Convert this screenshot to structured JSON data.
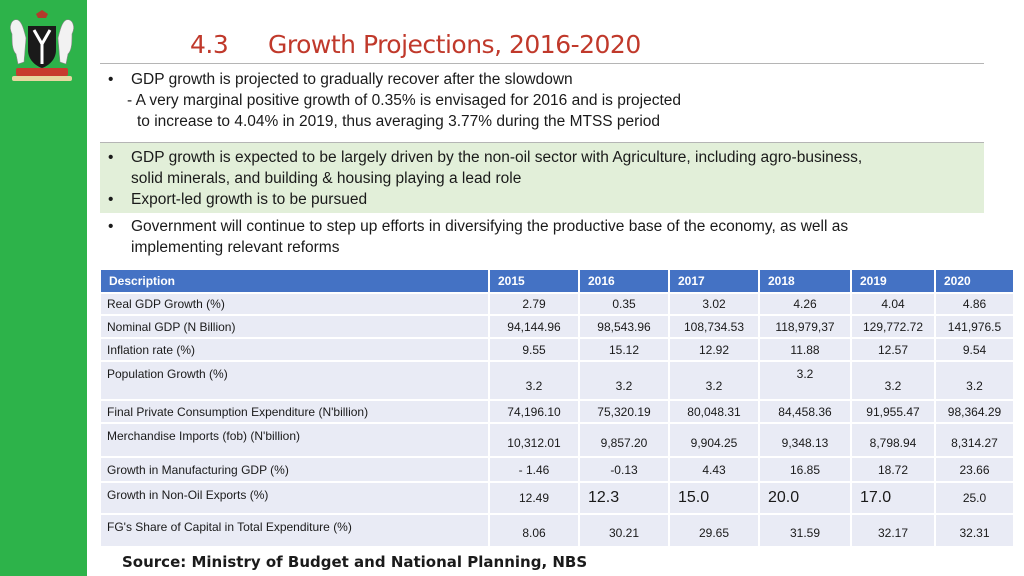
{
  "slide": {
    "title_number": "4.3",
    "title_text": "Growth Projections, 2016-2020",
    "bullets_block1": {
      "main": "GDP growth is projected to gradually recover after the slowdown",
      "sub1": "- A very marginal positive growth of 0.35% is envisaged for 2016 and is projected",
      "sub2": "to increase to 4.04% in 2019, thus averaging 3.77% during the MTSS period"
    },
    "bullets_block2": {
      "line1": "GDP growth is expected to be largely driven by the non-oil sector with Agriculture, including agro-business,",
      "line2": "solid minerals, and building & housing playing a lead role",
      "line3": "Export-led growth is to be pursued"
    },
    "bullets_block3": {
      "line1": "Government will continue to step up efforts in diversifying the productive base of the economy, as well as",
      "line2": "implementing relevant reforms"
    },
    "source": "Source: Ministry of Budget and National Planning, NBS"
  },
  "table": {
    "headers": [
      "Description",
      "2015",
      "2016",
      "2017",
      "2018",
      "2019",
      "2020"
    ],
    "rows": [
      [
        "Real GDP Growth (%)",
        "2.79",
        "0.35",
        "3.02",
        "4.26",
        "4.04",
        "4.86"
      ],
      [
        "Nominal GDP (N Billion)",
        "94,144.96",
        "98,543.96",
        "108,734.53",
        "118,979,37",
        "129,772.72",
        "141,976.5"
      ],
      [
        "Inflation rate (%)",
        "9.55",
        "15.12",
        "12.92",
        "11.88",
        "12.57",
        "9.54"
      ],
      [
        "Population Growth (%)",
        "3.2",
        "3.2",
        "3.2",
        "3.2",
        "3.2",
        "3.2"
      ],
      [
        "Final Private Consumption Expenditure (N'billion)",
        "74,196.10",
        "75,320.19",
        "80,048.31",
        "84,458.36",
        "91,955.47",
        "98,364.29"
      ],
      [
        "Merchandise Imports (fob) (N'billion)",
        "10,312.01",
        "9,857.20",
        "9,904.25",
        "9,348.13",
        "8,798.94",
        "8,314.27"
      ],
      [
        "Growth in Manufacturing GDP (%)",
        "- 1.46",
        "-0.13",
        "4.43",
        "16.85",
        "18.72",
        "23.66"
      ],
      [
        "Growth in Non-Oil Exports (%)",
        "12.49",
        "12.3",
        "15.0",
        "20.0",
        "17.0",
        "25.0"
      ],
      [
        "FG's Share of Capital in Total Expenditure (%)",
        "8.06",
        "30.21",
        "29.65",
        "31.59",
        "32.17",
        "32.31"
      ]
    ]
  },
  "colors": {
    "sidebar_green": "#2db34a",
    "title_red": "#c0392b",
    "table_header_blue": "#4472c4",
    "highlight_green": "#e2efd9"
  },
  "icons": {
    "crest": "nigeria-coat-of-arms-icon"
  }
}
